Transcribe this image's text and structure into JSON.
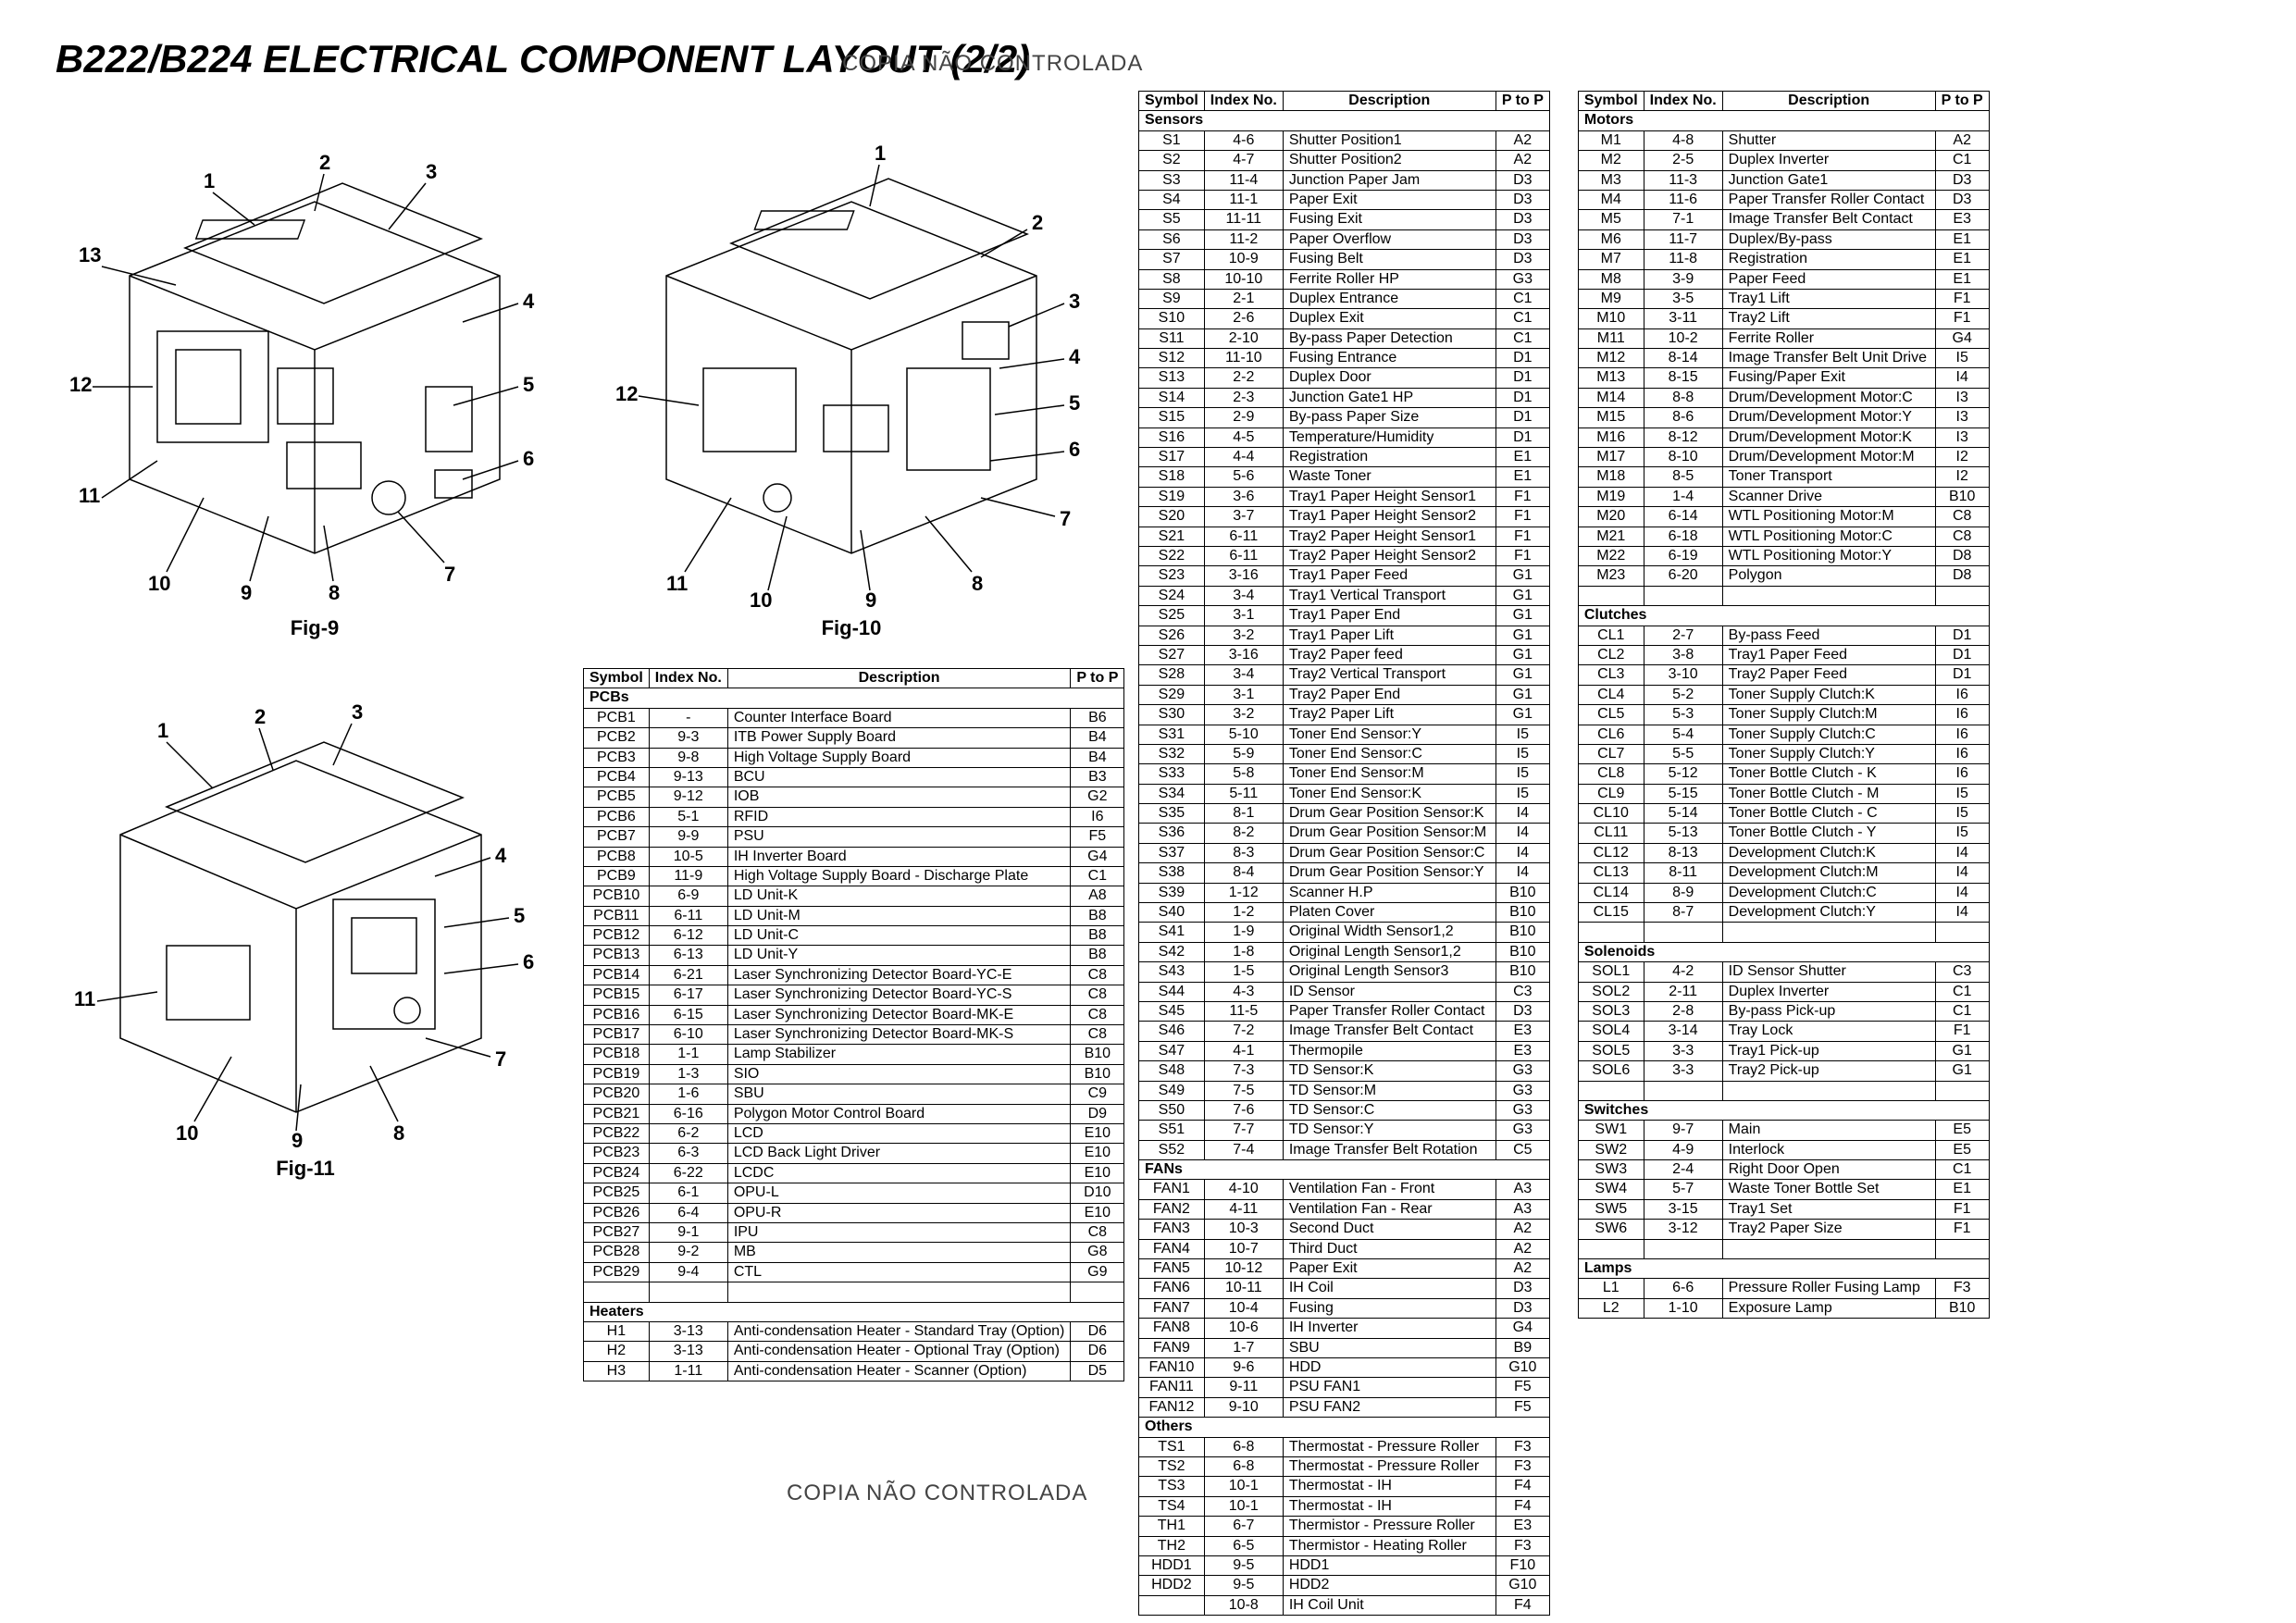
{
  "title": "B222/B224 ELECTRICAL COMPONENT LAYOUT (2/2)",
  "watermark": "COPIA NÃO CONTROLADA",
  "figs": {
    "f9": {
      "label": "Fig-9",
      "callouts": [
        "1",
        "2",
        "3",
        "4",
        "5",
        "6",
        "7",
        "8",
        "9",
        "10",
        "11",
        "12",
        "13"
      ]
    },
    "f10": {
      "label": "Fig-10",
      "callouts": [
        "1",
        "2",
        "3",
        "4",
        "5",
        "6",
        "7",
        "8",
        "9",
        "10",
        "11",
        "12"
      ]
    },
    "f11": {
      "label": "Fig-11",
      "callouts": [
        "1",
        "2",
        "3",
        "4",
        "5",
        "6",
        "7",
        "8",
        "9",
        "10",
        "11"
      ]
    }
  },
  "headers": {
    "symbol": "Symbol",
    "index": "Index No.",
    "desc": "Description",
    "ptop": "P to P"
  },
  "sections": {
    "pcb": "PCBs",
    "heaters": "Heaters",
    "sensors": "Sensors",
    "fans": "FANs",
    "others": "Others",
    "motors": "Motors",
    "clutches": "Clutches",
    "solenoids": "Solenoids",
    "switches": "Switches",
    "lamps": "Lamps"
  },
  "pcb": [
    [
      "PCB1",
      "-",
      "Counter Interface Board",
      "B6"
    ],
    [
      "PCB2",
      "9-3",
      "ITB Power Supply Board",
      "B4"
    ],
    [
      "PCB3",
      "9-8",
      "High Voltage Supply Board",
      "B4"
    ],
    [
      "PCB4",
      "9-13",
      "BCU",
      "B3"
    ],
    [
      "PCB5",
      "9-12",
      "IOB",
      "G2"
    ],
    [
      "PCB6",
      "5-1",
      "RFID",
      "I6"
    ],
    [
      "PCB7",
      "9-9",
      "PSU",
      "F5"
    ],
    [
      "PCB8",
      "10-5",
      "IH Inverter Board",
      "G4"
    ],
    [
      "PCB9",
      "11-9",
      "High Voltage Supply Board - Discharge Plate",
      "C1"
    ],
    [
      "PCB10",
      "6-9",
      "LD Unit-K",
      "A8"
    ],
    [
      "PCB11",
      "6-11",
      "LD Unit-M",
      "B8"
    ],
    [
      "PCB12",
      "6-12",
      "LD Unit-C",
      "B8"
    ],
    [
      "PCB13",
      "6-13",
      "LD Unit-Y",
      "B8"
    ],
    [
      "PCB14",
      "6-21",
      "Laser Synchronizing Detector Board-YC-E",
      "C8"
    ],
    [
      "PCB15",
      "6-17",
      "Laser Synchronizing Detector Board-YC-S",
      "C8"
    ],
    [
      "PCB16",
      "6-15",
      "Laser Synchronizing Detector Board-MK-E",
      "C8"
    ],
    [
      "PCB17",
      "6-10",
      "Laser Synchronizing Detector Board-MK-S",
      "C8"
    ],
    [
      "PCB18",
      "1-1",
      "Lamp Stabilizer",
      "B10"
    ],
    [
      "PCB19",
      "1-3",
      "SIO",
      "B10"
    ],
    [
      "PCB20",
      "1-6",
      "SBU",
      "C9"
    ],
    [
      "PCB21",
      "6-16",
      "Polygon Motor Control Board",
      "D9"
    ],
    [
      "PCB22",
      "6-2",
      "LCD",
      "E10"
    ],
    [
      "PCB23",
      "6-3",
      "LCD Back Light Driver",
      "E10"
    ],
    [
      "PCB24",
      "6-22",
      "LCDC",
      "E10"
    ],
    [
      "PCB25",
      "6-1",
      "OPU-L",
      "D10"
    ],
    [
      "PCB26",
      "6-4",
      "OPU-R",
      "E10"
    ],
    [
      "PCB27",
      "9-1",
      "IPU",
      "C8"
    ],
    [
      "PCB28",
      "9-2",
      "MB",
      "G8"
    ],
    [
      "PCB29",
      "9-4",
      "CTL",
      "G9"
    ]
  ],
  "heaters": [
    [
      "H1",
      "3-13",
      "Anti-condensation Heater - Standard Tray (Option)",
      "D6"
    ],
    [
      "H2",
      "3-13",
      "Anti-condensation Heater - Optional Tray (Option)",
      "D6"
    ],
    [
      "H3",
      "1-11",
      "Anti-condensation Heater - Scanner (Option)",
      "D5"
    ]
  ],
  "sensors": [
    [
      "S1",
      "4-6",
      "Shutter Position1",
      "A2"
    ],
    [
      "S2",
      "4-7",
      "Shutter Position2",
      "A2"
    ],
    [
      "S3",
      "11-4",
      "Junction Paper Jam",
      "D3"
    ],
    [
      "S4",
      "11-1",
      "Paper Exit",
      "D3"
    ],
    [
      "S5",
      "11-11",
      "Fusing Exit",
      "D3"
    ],
    [
      "S6",
      "11-2",
      "Paper Overflow",
      "D3"
    ],
    [
      "S7",
      "10-9",
      "Fusing Belt",
      "D3"
    ],
    [
      "S8",
      "10-10",
      "Ferrite Roller HP",
      "G3"
    ],
    [
      "S9",
      "2-1",
      "Duplex Entrance",
      "C1"
    ],
    [
      "S10",
      "2-6",
      "Duplex Exit",
      "C1"
    ],
    [
      "S11",
      "2-10",
      "By-pass Paper Detection",
      "C1"
    ],
    [
      "S12",
      "11-10",
      "Fusing Entrance",
      "D1"
    ],
    [
      "S13",
      "2-2",
      "Duplex Door",
      "D1"
    ],
    [
      "S14",
      "2-3",
      "Junction Gate1 HP",
      "D1"
    ],
    [
      "S15",
      "2-9",
      "By-pass Paper Size",
      "D1"
    ],
    [
      "S16",
      "4-5",
      "Temperature/Humidity",
      "D1"
    ],
    [
      "S17",
      "4-4",
      "Registration",
      "E1"
    ],
    [
      "S18",
      "5-6",
      "Waste Toner",
      "E1"
    ],
    [
      "S19",
      "3-6",
      "Tray1 Paper Height Sensor1",
      "F1"
    ],
    [
      "S20",
      "3-7",
      "Tray1 Paper Height Sensor2",
      "F1"
    ],
    [
      "S21",
      "6-11",
      "Tray2 Paper Height Sensor1",
      "F1"
    ],
    [
      "S22",
      "6-11",
      "Tray2 Paper Height Sensor2",
      "F1"
    ],
    [
      "S23",
      "3-16",
      "Tray1 Paper Feed",
      "G1"
    ],
    [
      "S24",
      "3-4",
      "Tray1 Vertical Transport",
      "G1"
    ],
    [
      "S25",
      "3-1",
      "Tray1 Paper End",
      "G1"
    ],
    [
      "S26",
      "3-2",
      "Tray1 Paper Lift",
      "G1"
    ],
    [
      "S27",
      "3-16",
      "Tray2 Paper feed",
      "G1"
    ],
    [
      "S28",
      "3-4",
      "Tray2 Vertical Transport",
      "G1"
    ],
    [
      "S29",
      "3-1",
      "Tray2 Paper End",
      "G1"
    ],
    [
      "S30",
      "3-2",
      "Tray2 Paper Lift",
      "G1"
    ],
    [
      "S31",
      "5-10",
      "Toner End Sensor:Y",
      "I5"
    ],
    [
      "S32",
      "5-9",
      "Toner End Sensor:C",
      "I5"
    ],
    [
      "S33",
      "5-8",
      "Toner End Sensor:M",
      "I5"
    ],
    [
      "S34",
      "5-11",
      "Toner End Sensor:K",
      "I5"
    ],
    [
      "S35",
      "8-1",
      "Drum Gear Position Sensor:K",
      "I4"
    ],
    [
      "S36",
      "8-2",
      "Drum Gear Position Sensor:M",
      "I4"
    ],
    [
      "S37",
      "8-3",
      "Drum Gear Position Sensor:C",
      "I4"
    ],
    [
      "S38",
      "8-4",
      "Drum Gear Position Sensor:Y",
      "I4"
    ],
    [
      "S39",
      "1-12",
      "Scanner H.P",
      "B10"
    ],
    [
      "S40",
      "1-2",
      "Platen Cover",
      "B10"
    ],
    [
      "S41",
      "1-9",
      "Original Width Sensor1,2",
      "B10"
    ],
    [
      "S42",
      "1-8",
      "Original Length Sensor1,2",
      "B10"
    ],
    [
      "S43",
      "1-5",
      "Original Length Sensor3",
      "B10"
    ],
    [
      "S44",
      "4-3",
      "ID Sensor",
      "C3"
    ],
    [
      "S45",
      "11-5",
      "Paper Transfer Roller Contact",
      "D3"
    ],
    [
      "S46",
      "7-2",
      "Image Transfer Belt Contact",
      "E3"
    ],
    [
      "S47",
      "4-1",
      "Thermopile",
      "E3"
    ],
    [
      "S48",
      "7-3",
      "TD Sensor:K",
      "G3"
    ],
    [
      "S49",
      "7-5",
      "TD Sensor:M",
      "G3"
    ],
    [
      "S50",
      "7-6",
      "TD Sensor:C",
      "G3"
    ],
    [
      "S51",
      "7-7",
      "TD Sensor:Y",
      "G3"
    ],
    [
      "S52",
      "7-4",
      "Image Transfer Belt Rotation",
      "C5"
    ]
  ],
  "fans": [
    [
      "FAN1",
      "4-10",
      "Ventilation Fan - Front",
      "A3"
    ],
    [
      "FAN2",
      "4-11",
      "Ventilation Fan - Rear",
      "A3"
    ],
    [
      "FAN3",
      "10-3",
      "Second Duct",
      "A2"
    ],
    [
      "FAN4",
      "10-7",
      "Third Duct",
      "A2"
    ],
    [
      "FAN5",
      "10-12",
      "Paper Exit",
      "A2"
    ],
    [
      "FAN6",
      "10-11",
      "IH Coil",
      "D3"
    ],
    [
      "FAN7",
      "10-4",
      "Fusing",
      "D3"
    ],
    [
      "FAN8",
      "10-6",
      "IH Inverter",
      "G4"
    ],
    [
      "FAN9",
      "1-7",
      "SBU",
      "B9"
    ],
    [
      "FAN10",
      "9-6",
      "HDD",
      "G10"
    ],
    [
      "FAN11",
      "9-11",
      "PSU FAN1",
      "F5"
    ],
    [
      "FAN12",
      "9-10",
      "PSU FAN2",
      "F5"
    ]
  ],
  "others": [
    [
      "TS1",
      "6-8",
      "Thermostat - Pressure Roller",
      "F3"
    ],
    [
      "TS2",
      "6-8",
      "Thermostat - Pressure Roller",
      "F3"
    ],
    [
      "TS3",
      "10-1",
      "Thermostat - IH",
      "F4"
    ],
    [
      "TS4",
      "10-1",
      "Thermostat - IH",
      "F4"
    ],
    [
      "TH1",
      "6-7",
      "Thermistor - Pressure Roller",
      "E3"
    ],
    [
      "TH2",
      "6-5",
      "Thermistor - Heating Roller",
      "F3"
    ],
    [
      "HDD1",
      "9-5",
      "HDD1",
      "F10"
    ],
    [
      "HDD2",
      "9-5",
      "HDD2",
      "G10"
    ],
    [
      "",
      "10-8",
      "IH Coil Unit",
      "F4"
    ]
  ],
  "motors": [
    [
      "M1",
      "4-8",
      "Shutter",
      "A2"
    ],
    [
      "M2",
      "2-5",
      "Duplex Inverter",
      "C1"
    ],
    [
      "M3",
      "11-3",
      "Junction Gate1",
      "D3"
    ],
    [
      "M4",
      "11-6",
      "Paper Transfer Roller Contact",
      "D3"
    ],
    [
      "M5",
      "7-1",
      "Image Transfer Belt Contact",
      "E3"
    ],
    [
      "M6",
      "11-7",
      "Duplex/By-pass",
      "E1"
    ],
    [
      "M7",
      "11-8",
      "Registration",
      "E1"
    ],
    [
      "M8",
      "3-9",
      "Paper Feed",
      "E1"
    ],
    [
      "M9",
      "3-5",
      "Tray1 Lift",
      "F1"
    ],
    [
      "M10",
      "3-11",
      "Tray2 Lift",
      "F1"
    ],
    [
      "M11",
      "10-2",
      "Ferrite Roller",
      "G4"
    ],
    [
      "M12",
      "8-14",
      "Image Transfer Belt Unit Drive",
      "I5"
    ],
    [
      "M13",
      "8-15",
      "Fusing/Paper Exit",
      "I4"
    ],
    [
      "M14",
      "8-8",
      "Drum/Development Motor:C",
      "I3"
    ],
    [
      "M15",
      "8-6",
      "Drum/Development Motor:Y",
      "I3"
    ],
    [
      "M16",
      "8-12",
      "Drum/Development Motor:K",
      "I3"
    ],
    [
      "M17",
      "8-10",
      "Drum/Development Motor:M",
      "I2"
    ],
    [
      "M18",
      "8-5",
      "Toner Transport",
      "I2"
    ],
    [
      "M19",
      "1-4",
      "Scanner Drive",
      "B10"
    ],
    [
      "M20",
      "6-14",
      "WTL Positioning Motor:M",
      "C8"
    ],
    [
      "M21",
      "6-18",
      "WTL Positioning Motor:C",
      "C8"
    ],
    [
      "M22",
      "6-19",
      "WTL Positioning Motor:Y",
      "D8"
    ],
    [
      "M23",
      "6-20",
      "Polygon",
      "D8"
    ]
  ],
  "clutches": [
    [
      "CL1",
      "2-7",
      "By-pass Feed",
      "D1"
    ],
    [
      "CL2",
      "3-8",
      "Tray1 Paper Feed",
      "D1"
    ],
    [
      "CL3",
      "3-10",
      "Tray2 Paper Feed",
      "D1"
    ],
    [
      "CL4",
      "5-2",
      "Toner Supply Clutch:K",
      "I6"
    ],
    [
      "CL5",
      "5-3",
      "Toner Supply Clutch:M",
      "I6"
    ],
    [
      "CL6",
      "5-4",
      "Toner Supply Clutch:C",
      "I6"
    ],
    [
      "CL7",
      "5-5",
      "Toner Supply Clutch:Y",
      "I6"
    ],
    [
      "CL8",
      "5-12",
      "Toner Bottle Clutch - K",
      "I6"
    ],
    [
      "CL9",
      "5-15",
      "Toner Bottle Clutch - M",
      "I5"
    ],
    [
      "CL10",
      "5-14",
      "Toner Bottle Clutch - C",
      "I5"
    ],
    [
      "CL11",
      "5-13",
      "Toner Bottle Clutch - Y",
      "I5"
    ],
    [
      "CL12",
      "8-13",
      "Development Clutch:K",
      "I4"
    ],
    [
      "CL13",
      "8-11",
      "Development Clutch:M",
      "I4"
    ],
    [
      "CL14",
      "8-9",
      "Development Clutch:C",
      "I4"
    ],
    [
      "CL15",
      "8-7",
      "Development Clutch:Y",
      "I4"
    ]
  ],
  "solenoids": [
    [
      "SOL1",
      "4-2",
      "ID Sensor Shutter",
      "C3"
    ],
    [
      "SOL2",
      "2-11",
      "Duplex Inverter",
      "C1"
    ],
    [
      "SOL3",
      "2-8",
      "By-pass Pick-up",
      "C1"
    ],
    [
      "SOL4",
      "3-14",
      "Tray Lock",
      "F1"
    ],
    [
      "SOL5",
      "3-3",
      "Tray1 Pick-up",
      "G1"
    ],
    [
      "SOL6",
      "3-3",
      "Tray2 Pick-up",
      "G1"
    ]
  ],
  "switches": [
    [
      "SW1",
      "9-7",
      "Main",
      "E5"
    ],
    [
      "SW2",
      "4-9",
      "Interlock",
      "E5"
    ],
    [
      "SW3",
      "2-4",
      "Right Door Open",
      "C1"
    ],
    [
      "SW4",
      "5-7",
      "Waste Toner Bottle Set",
      "E1"
    ],
    [
      "SW5",
      "3-15",
      "Tray1 Set",
      "F1"
    ],
    [
      "SW6",
      "3-12",
      "Tray2 Paper Size",
      "F1"
    ]
  ],
  "lamps": [
    [
      "L1",
      "6-6",
      "Pressure Roller Fusing Lamp",
      "F3"
    ],
    [
      "L2",
      "1-10",
      "Exposure Lamp",
      "B10"
    ]
  ]
}
